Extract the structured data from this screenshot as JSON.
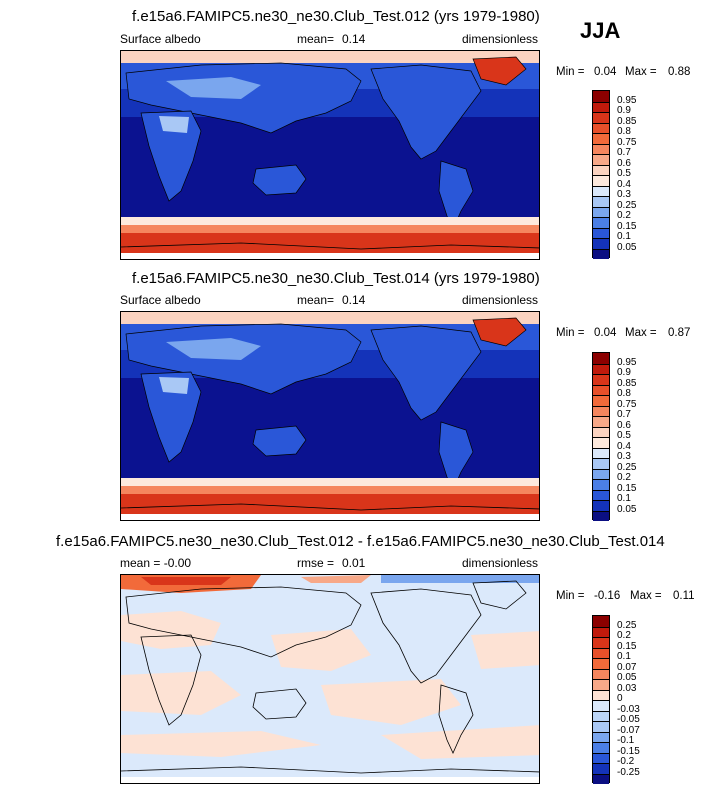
{
  "season": "JJA",
  "panels": [
    {
      "title": "f.e15a6.FAMIPC5.ne30_ne30.Club_Test.012 (yrs 1979-1980)",
      "left_label": "Surface albedo",
      "mean_label": "mean=",
      "mean_value": "0.14",
      "units": "dimensionless",
      "min_label": "Min =",
      "min_value": "0.04",
      "max_label": "Max =",
      "max_value": "0.88"
    },
    {
      "title": "f.e15a6.FAMIPC5.ne30_ne30.Club_Test.014 (yrs 1979-1980)",
      "left_label": "Surface albedo",
      "mean_label": "mean=",
      "mean_value": "0.14",
      "units": "dimensionless",
      "min_label": "Min =",
      "min_value": "0.04",
      "max_label": "Max =",
      "max_value": "0.87"
    },
    {
      "title": "f.e15a6.FAMIPC5.ne30_ne30.Club_Test.012 - f.e15a6.FAMIPC5.ne30_ne30.Club_Test.014",
      "left_label": "mean = -0.00",
      "mean_label": "rmse =",
      "mean_value": "0.01",
      "units": "dimensionless",
      "min_label": "Min =",
      "min_value": "-0.16",
      "max_label": "Max =",
      "max_value": "0.11"
    }
  ],
  "colorbars": {
    "albedo": {
      "ticks": [
        "0.95",
        "0.9",
        "0.85",
        "0.8",
        "0.75",
        "0.7",
        "0.6",
        "0.5",
        "0.4",
        "0.3",
        "0.25",
        "0.2",
        "0.15",
        "0.1",
        "0.05"
      ],
      "colors": [
        "#8b0000",
        "#c01a0c",
        "#d9351a",
        "#e8502a",
        "#f26a3a",
        "#f5865e",
        "#f7a888",
        "#fbd3c0",
        "#fde9dd",
        "#dbe9fb",
        "#a9c8f5",
        "#7aa6ee",
        "#4b7fe6",
        "#2a57d8",
        "#1433b9",
        "#0b0f82"
      ]
    },
    "difference": {
      "ticks": [
        "0.25",
        "0.2",
        "0.15",
        "0.1",
        "0.07",
        "0.05",
        "0.03",
        "0",
        "-0.03",
        "-0.05",
        "-0.07",
        "-0.1",
        "-0.15",
        "-0.2",
        "-0.25"
      ],
      "colors": [
        "#8b0000",
        "#c01a0c",
        "#d9351a",
        "#e8502a",
        "#f26a3a",
        "#f5865e",
        "#f7a888",
        "#fde2d4",
        "#dbe9fb",
        "#bcd6f8",
        "#a9c8f5",
        "#7aa6ee",
        "#4b7fe6",
        "#2a57d8",
        "#1433b9",
        "#0b0f82"
      ]
    }
  }
}
